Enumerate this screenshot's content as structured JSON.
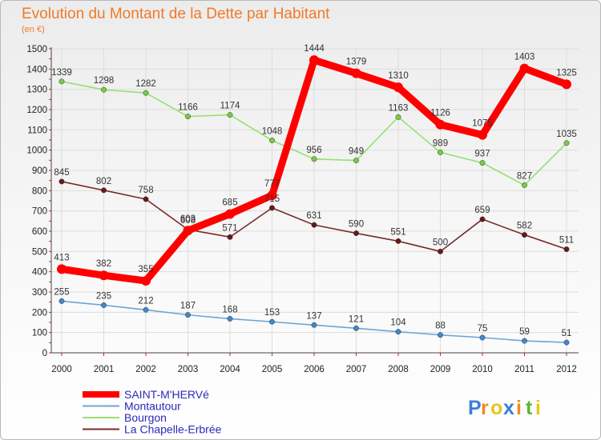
{
  "chart_data": {
    "type": "line",
    "title": "Evolution du Montant de la Dette par Habitant",
    "subtitle": "(en €)",
    "x": [
      "2000",
      "2001",
      "2002",
      "2003",
      "2004",
      "2005",
      "2006",
      "2007",
      "2008",
      "2009",
      "2010",
      "2011",
      "2012"
    ],
    "ylim": [
      0,
      1500
    ],
    "yticks": [
      0,
      100,
      200,
      300,
      400,
      500,
      600,
      700,
      800,
      900,
      1000,
      1100,
      1200,
      1300,
      1400,
      1500
    ],
    "grid": true,
    "legend_position": "bottom-left",
    "series": [
      {
        "name": "SAINT-M'HERVé",
        "color": "#ff0000",
        "marker": "#ff0000",
        "width": 9,
        "values": [
          413,
          382,
          355,
          603,
          685,
          777,
          1444,
          1379,
          1310,
          1126,
          1075,
          1403,
          1325
        ]
      },
      {
        "name": "Montautour",
        "color": "#6ea5d6",
        "marker": "#3f89cc",
        "width": 1.6,
        "values": [
          255,
          235,
          212,
          187,
          168,
          153,
          137,
          121,
          104,
          88,
          75,
          59,
          51
        ]
      },
      {
        "name": "Bourgon",
        "color": "#98e070",
        "marker": "#77cc44",
        "width": 1.6,
        "values": [
          1339,
          1298,
          1282,
          1166,
          1174,
          1048,
          956,
          949,
          1163,
          989,
          937,
          827,
          1035
        ]
      },
      {
        "name": "La Chapelle-Erbrée",
        "color": "#7a2a2a",
        "marker": "#6a1818",
        "width": 1.6,
        "values": [
          845,
          802,
          758,
          608,
          571,
          715,
          631,
          590,
          551,
          500,
          659,
          582,
          511
        ]
      }
    ]
  },
  "logo": {
    "letters": [
      "P",
      "r",
      "o",
      "x",
      "i",
      "t",
      "i"
    ],
    "colors": [
      "#3a7fd5",
      "#f28a1c",
      "#e8c41a",
      "#3a7fd5",
      "#f28a1c",
      "#58b830",
      "#e8c41a"
    ]
  }
}
